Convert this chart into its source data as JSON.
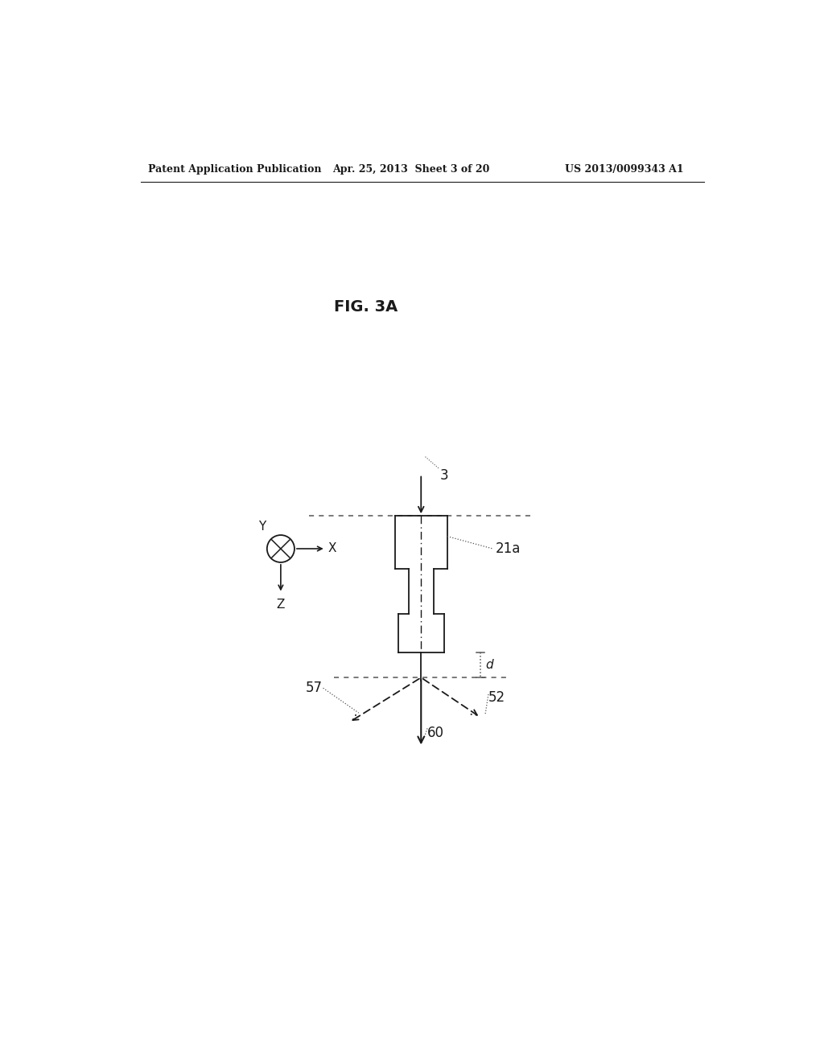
{
  "bg_color": "#ffffff",
  "header_left": "Patent Application Publication",
  "header_mid": "Apr. 25, 2013  Sheet 3 of 20",
  "header_right": "US 2013/0099343 A1",
  "fig_label": "FIG. 3A",
  "label_3": "3",
  "label_21a": "21a",
  "label_57": "57",
  "label_52": "52",
  "label_60": "60",
  "label_d": "d",
  "label_Y": "Y",
  "label_X": "X",
  "label_Z": "Z",
  "line_color": "#1a1a1a",
  "dashed_color": "#555555"
}
